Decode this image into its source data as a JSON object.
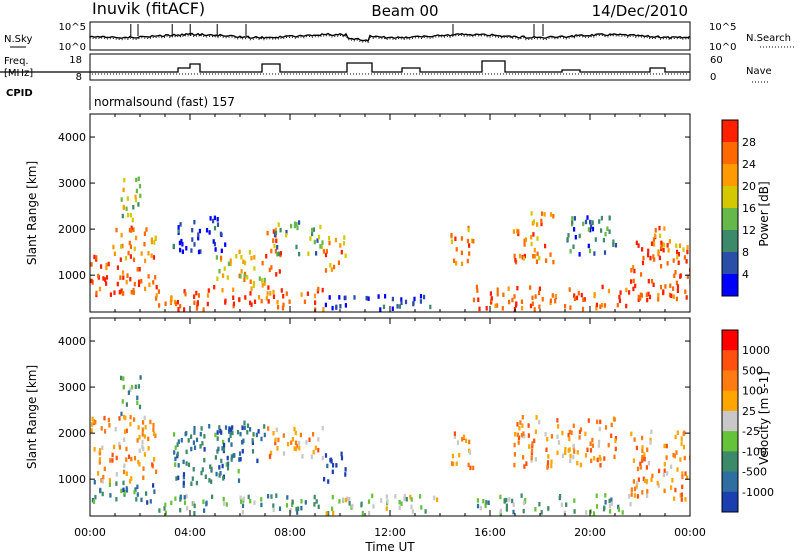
{
  "header": {
    "station": "Inuvik (fitACF)",
    "beam": "Beam 00",
    "date": "14/Dec/2010"
  },
  "strips": {
    "nsky_label": "N.Sky",
    "nsearch_label": "N.Search",
    "freq_label_1": "Freq.",
    "freq_label_2": "[MHz]",
    "nave_label": "Nave",
    "cpid_label": "CPID",
    "cpid_value": "normalsound (fast) 157",
    "nsky_ticks": [
      "10^5",
      "10^0"
    ],
    "nsearch_ticks": [
      "10^5",
      "10^0"
    ],
    "freq_ticks": [
      "18",
      "8"
    ],
    "nave_ticks": [
      "60",
      "0"
    ]
  },
  "colors": {
    "power_scale": [
      "#0000ff",
      "#2b4fa8",
      "#3d8a6a",
      "#66b84a",
      "#d4c800",
      "#ff9a00",
      "#ff6a00",
      "#ff2000"
    ],
    "velocity_scale": [
      "#1c3fb0",
      "#2e6ea0",
      "#3d8a6a",
      "#66c23a",
      "#c8c8c8",
      "#ffa500",
      "#ff7a10",
      "#ff5010",
      "#ff0000"
    ]
  },
  "chart_data": [
    {
      "type": "heatmap",
      "name": "power",
      "ylabel": "Slant Range [km]",
      "xlabel": "",
      "x_ticks": [
        "00:00",
        "04:00",
        "08:00",
        "12:00",
        "16:00",
        "20:00",
        "00:00"
      ],
      "y_ticks": [
        1000,
        2000,
        3000,
        4000
      ],
      "ylim": [
        200,
        4500
      ],
      "colorbar_label": "Power [dB]",
      "colorbar_ticks": [
        "28",
        "24",
        "20",
        "16",
        "12",
        "8",
        "4"
      ],
      "blobs": [
        {
          "t0": 0.0,
          "t1": 2.6,
          "r0": 600,
          "r1": 1500,
          "c": 7
        },
        {
          "t0": 0.8,
          "t1": 2.6,
          "r0": 1400,
          "r1": 2100,
          "c": 6
        },
        {
          "t0": 1.2,
          "t1": 2.0,
          "r0": 2100,
          "r1": 3200,
          "c": 4
        },
        {
          "t0": 2.6,
          "t1": 9.3,
          "r0": 300,
          "r1": 800,
          "c": 7
        },
        {
          "t0": 3.3,
          "t1": 5.4,
          "r0": 1500,
          "r1": 2300,
          "c": 1
        },
        {
          "t0": 5.0,
          "t1": 7.0,
          "r0": 800,
          "r1": 1600,
          "c": 5
        },
        {
          "t0": 7.0,
          "t1": 7.6,
          "r0": 1000,
          "r1": 2100,
          "c": 7
        },
        {
          "t0": 7.3,
          "t1": 9.3,
          "r0": 1500,
          "r1": 2200,
          "c": 3
        },
        {
          "t0": 9.3,
          "t1": 10.2,
          "r0": 1100,
          "r1": 1900,
          "c": 6
        },
        {
          "t0": 9.3,
          "t1": 14.0,
          "r0": 300,
          "r1": 600,
          "c": 1
        },
        {
          "t0": 14.4,
          "t1": 15.3,
          "r0": 1200,
          "r1": 2100,
          "c": 6
        },
        {
          "t0": 15.3,
          "t1": 21.6,
          "r0": 300,
          "r1": 800,
          "c": 7
        },
        {
          "t0": 16.9,
          "t1": 18.5,
          "r0": 1300,
          "r1": 2400,
          "c": 6
        },
        {
          "t0": 19.0,
          "t1": 21.0,
          "r0": 1500,
          "r1": 2400,
          "c": 2
        },
        {
          "t0": 21.6,
          "t1": 24.0,
          "r0": 500,
          "r1": 1800,
          "c": 7
        },
        {
          "t0": 22.5,
          "t1": 24.0,
          "r0": 1400,
          "r1": 2100,
          "c": 6
        }
      ]
    },
    {
      "type": "heatmap",
      "name": "velocity",
      "ylabel": "Slant Range [km]",
      "xlabel": "Time UT",
      "x_ticks": [
        "00:00",
        "04:00",
        "08:00",
        "12:00",
        "16:00",
        "20:00",
        "00:00"
      ],
      "y_ticks": [
        1000,
        2000,
        3000,
        4000
      ],
      "ylim": [
        200,
        4500
      ],
      "colorbar_label": "Velocity [m s-1]",
      "colorbar_ticks": [
        "1000",
        "500",
        "100",
        "25",
        "-25",
        "-100",
        "-500",
        "-1000"
      ],
      "blobs": [
        {
          "t0": 0.0,
          "t1": 2.6,
          "r0": 1000,
          "r1": 2400,
          "c": 6
        },
        {
          "t0": 0.0,
          "t1": 2.6,
          "r0": 500,
          "r1": 1000,
          "c": 2
        },
        {
          "t0": 1.2,
          "t1": 2.0,
          "r0": 2400,
          "r1": 3300,
          "c": 3
        },
        {
          "t0": 2.6,
          "t1": 9.3,
          "r0": 300,
          "r1": 700,
          "c": 3
        },
        {
          "t0": 3.3,
          "t1": 6.0,
          "r0": 900,
          "r1": 2200,
          "c": 2
        },
        {
          "t0": 5.0,
          "t1": 7.0,
          "r0": 1400,
          "r1": 2300,
          "c": 1
        },
        {
          "t0": 7.0,
          "t1": 9.3,
          "r0": 1500,
          "r1": 2200,
          "c": 6
        },
        {
          "t0": 9.3,
          "t1": 10.2,
          "r0": 900,
          "r1": 1600,
          "c": 0
        },
        {
          "t0": 9.3,
          "t1": 14.0,
          "r0": 300,
          "r1": 700,
          "c": 4
        },
        {
          "t0": 14.4,
          "t1": 15.3,
          "r0": 1200,
          "r1": 2100,
          "c": 6
        },
        {
          "t0": 15.3,
          "t1": 21.6,
          "r0": 300,
          "r1": 700,
          "c": 3
        },
        {
          "t0": 16.9,
          "t1": 21.0,
          "r0": 1300,
          "r1": 2400,
          "c": 6
        },
        {
          "t0": 21.6,
          "t1": 24.0,
          "r0": 600,
          "r1": 2100,
          "c": 6
        }
      ]
    }
  ]
}
